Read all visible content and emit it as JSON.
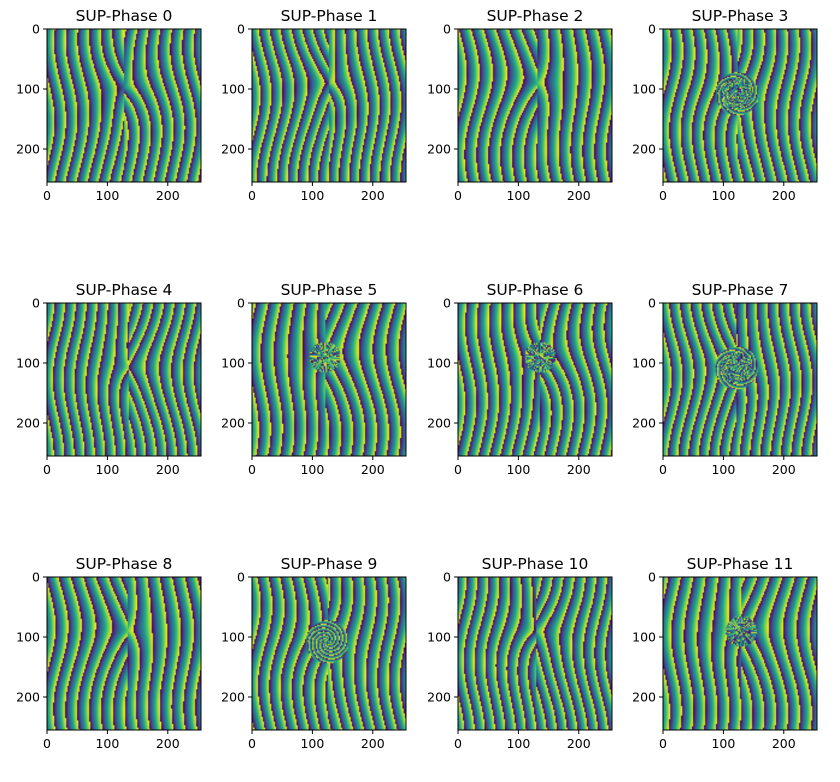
{
  "chart_data": {
    "type": "heatmap",
    "colormap": "viridis",
    "grid": false,
    "xlim": [
      0,
      255
    ],
    "ylim": [
      255,
      0
    ],
    "xticks": [
      0,
      100,
      200
    ],
    "yticks": [
      0,
      100,
      200
    ],
    "panels": [
      {
        "title": "SUP-Phase 0",
        "pattern": "fingerprint-core-upper"
      },
      {
        "title": "SUP-Phase 1",
        "pattern": "fork-upper"
      },
      {
        "title": "SUP-Phase 2",
        "pattern": "fork-upper"
      },
      {
        "title": "SUP-Phase 3",
        "pattern": "ring-cluster-center"
      },
      {
        "title": "SUP-Phase 4",
        "pattern": "small-defect-center"
      },
      {
        "title": "SUP-Phase 5",
        "pattern": "fork-cluster"
      },
      {
        "title": "SUP-Phase 6",
        "pattern": "fork-cluster"
      },
      {
        "title": "SUP-Phase 7",
        "pattern": "ring-cluster-center"
      },
      {
        "title": "SUP-Phase 8",
        "pattern": "fork-upper"
      },
      {
        "title": "SUP-Phase 9",
        "pattern": "ring-center"
      },
      {
        "title": "SUP-Phase 10",
        "pattern": "fork-upper"
      },
      {
        "title": "SUP-Phase 11",
        "pattern": "fork-cluster"
      }
    ]
  }
}
